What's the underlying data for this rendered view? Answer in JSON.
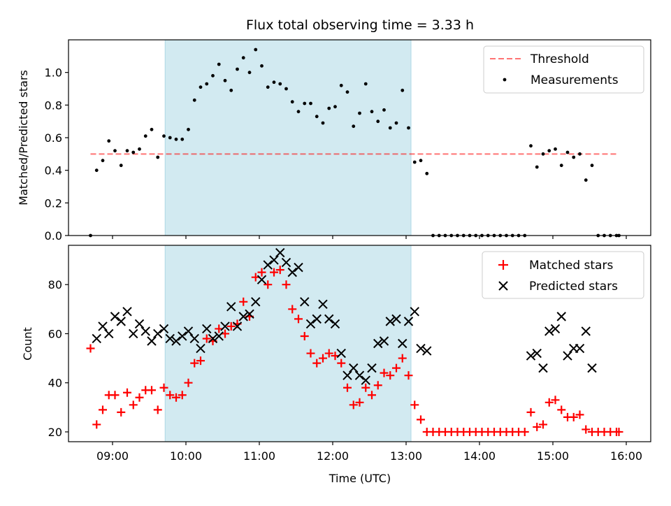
{
  "title": "Flux total observing time = 3.33 h",
  "colors": {
    "highlight": "#add8e6",
    "threshold": "#ff0000",
    "measurements": "#000000",
    "matched": "#ff0000",
    "predicted": "#000000"
  },
  "chart_data": [
    {
      "type": "scatter",
      "ylabel": "Matched/Predicted stars",
      "xlabel": "",
      "xlim": [
        "08:24",
        "16:20"
      ],
      "ylim": [
        0,
        1.2
      ],
      "x_ticks": [
        "09:00",
        "10:00",
        "11:00",
        "12:00",
        "13:00",
        "14:00",
        "15:00",
        "16:00"
      ],
      "y_ticks": [
        "0.0",
        "0.2",
        "0.4",
        "0.6",
        "0.8",
        "1.0"
      ],
      "highlight_span": [
        "09:43",
        "13:04"
      ],
      "legend_position": "top-right",
      "threshold": {
        "name": "Threshold",
        "value": 0.5,
        "range": [
          "08:42",
          "15:54"
        ]
      },
      "series": [
        {
          "name": "Measurements",
          "points": [
            [
              "08:42",
              0.0
            ],
            [
              "08:47",
              0.4
            ],
            [
              "08:52",
              0.46
            ],
            [
              "08:57",
              0.58
            ],
            [
              "09:02",
              0.52
            ],
            [
              "09:07",
              0.43
            ],
            [
              "09:12",
              0.52
            ],
            [
              "09:17",
              0.51
            ],
            [
              "09:22",
              0.53
            ],
            [
              "09:27",
              0.61
            ],
            [
              "09:32",
              0.65
            ],
            [
              "09:37",
              0.48
            ],
            [
              "09:42",
              0.61
            ],
            [
              "09:47",
              0.6
            ],
            [
              "09:52",
              0.59
            ],
            [
              "09:57",
              0.59
            ],
            [
              "10:02",
              0.65
            ],
            [
              "10:07",
              0.83
            ],
            [
              "10:12",
              0.91
            ],
            [
              "10:17",
              0.93
            ],
            [
              "10:22",
              0.98
            ],
            [
              "10:27",
              1.05
            ],
            [
              "10:32",
              0.95
            ],
            [
              "10:37",
              0.89
            ],
            [
              "10:42",
              1.02
            ],
            [
              "10:47",
              1.09
            ],
            [
              "10:52",
              1.0
            ],
            [
              "10:57",
              1.14
            ],
            [
              "11:02",
              1.04
            ],
            [
              "11:07",
              0.91
            ],
            [
              "11:12",
              0.94
            ],
            [
              "11:17",
              0.93
            ],
            [
              "11:22",
              0.9
            ],
            [
              "11:27",
              0.82
            ],
            [
              "11:32",
              0.76
            ],
            [
              "11:37",
              0.81
            ],
            [
              "11:42",
              0.81
            ],
            [
              "11:47",
              0.73
            ],
            [
              "11:52",
              0.69
            ],
            [
              "11:57",
              0.78
            ],
            [
              "12:02",
              0.79
            ],
            [
              "12:07",
              0.92
            ],
            [
              "12:12",
              0.88
            ],
            [
              "12:17",
              0.67
            ],
            [
              "12:22",
              0.75
            ],
            [
              "12:27",
              0.93
            ],
            [
              "12:32",
              0.76
            ],
            [
              "12:37",
              0.7
            ],
            [
              "12:42",
              0.77
            ],
            [
              "12:47",
              0.66
            ],
            [
              "12:52",
              0.69
            ],
            [
              "12:57",
              0.89
            ],
            [
              "13:02",
              0.66
            ],
            [
              "13:07",
              0.45
            ],
            [
              "13:12",
              0.46
            ],
            [
              "13:17",
              0.38
            ],
            [
              "13:22",
              0.0
            ],
            [
              "13:27",
              0.0
            ],
            [
              "13:32",
              0.0
            ],
            [
              "13:37",
              0.0
            ],
            [
              "13:42",
              0.0
            ],
            [
              "13:47",
              0.0
            ],
            [
              "13:52",
              0.0
            ],
            [
              "13:57",
              0.0
            ],
            [
              "14:02",
              0.0
            ],
            [
              "14:07",
              0.0
            ],
            [
              "14:12",
              0.0
            ],
            [
              "14:17",
              0.0
            ],
            [
              "14:22",
              0.0
            ],
            [
              "14:27",
              0.0
            ],
            [
              "14:32",
              0.0
            ],
            [
              "14:37",
              0.0
            ],
            [
              "14:42",
              0.55
            ],
            [
              "14:47",
              0.42
            ],
            [
              "14:52",
              0.5
            ],
            [
              "14:57",
              0.52
            ],
            [
              "15:02",
              0.53
            ],
            [
              "15:07",
              0.43
            ],
            [
              "15:12",
              0.51
            ],
            [
              "15:17",
              0.48
            ],
            [
              "15:22",
              0.5
            ],
            [
              "15:27",
              0.34
            ],
            [
              "15:32",
              0.43
            ],
            [
              "15:37",
              0.0
            ],
            [
              "15:42",
              0.0
            ],
            [
              "15:47",
              0.0
            ],
            [
              "15:52",
              0.0
            ],
            [
              "15:54",
              0.0
            ]
          ]
        }
      ]
    },
    {
      "type": "scatter",
      "ylabel": "Count",
      "xlabel": "Time (UTC)",
      "xlim": [
        "08:24",
        "16:20"
      ],
      "ylim": [
        16,
        96
      ],
      "x_ticks": [
        "09:00",
        "10:00",
        "11:00",
        "12:00",
        "13:00",
        "14:00",
        "15:00",
        "16:00"
      ],
      "y_ticks": [
        "20",
        "40",
        "60",
        "80"
      ],
      "highlight_span": [
        "09:43",
        "13:04"
      ],
      "legend_position": "top-right",
      "series": [
        {
          "name": "Matched stars",
          "marker": "+",
          "points": [
            [
              "08:42",
              54
            ],
            [
              "08:47",
              23
            ],
            [
              "08:52",
              29
            ],
            [
              "08:57",
              35
            ],
            [
              "09:02",
              35
            ],
            [
              "09:07",
              28
            ],
            [
              "09:12",
              36
            ],
            [
              "09:17",
              31
            ],
            [
              "09:22",
              34
            ],
            [
              "09:27",
              37
            ],
            [
              "09:32",
              37
            ],
            [
              "09:37",
              29
            ],
            [
              "09:42",
              38
            ],
            [
              "09:47",
              35
            ],
            [
              "09:52",
              34
            ],
            [
              "09:57",
              35
            ],
            [
              "10:02",
              40
            ],
            [
              "10:07",
              48
            ],
            [
              "10:12",
              49
            ],
            [
              "10:17",
              58
            ],
            [
              "10:22",
              57
            ],
            [
              "10:27",
              62
            ],
            [
              "10:32",
              60
            ],
            [
              "10:37",
              63
            ],
            [
              "10:42",
              64
            ],
            [
              "10:47",
              73
            ],
            [
              "10:52",
              67
            ],
            [
              "10:57",
              83
            ],
            [
              "11:02",
              85
            ],
            [
              "11:07",
              80
            ],
            [
              "11:12",
              85
            ],
            [
              "11:17",
              86
            ],
            [
              "11:22",
              80
            ],
            [
              "11:27",
              70
            ],
            [
              "11:32",
              66
            ],
            [
              "11:37",
              59
            ],
            [
              "11:42",
              52
            ],
            [
              "11:47",
              48
            ],
            [
              "11:52",
              50
            ],
            [
              "11:57",
              52
            ],
            [
              "12:02",
              51
            ],
            [
              "12:07",
              48
            ],
            [
              "12:12",
              38
            ],
            [
              "12:17",
              31
            ],
            [
              "12:22",
              32
            ],
            [
              "12:27",
              38
            ],
            [
              "12:32",
              35
            ],
            [
              "12:37",
              39
            ],
            [
              "12:42",
              44
            ],
            [
              "12:47",
              43
            ],
            [
              "12:52",
              46
            ],
            [
              "12:57",
              50
            ],
            [
              "13:02",
              43
            ],
            [
              "13:07",
              31
            ],
            [
              "13:12",
              25
            ],
            [
              "13:17",
              20
            ],
            [
              "13:22",
              20
            ],
            [
              "13:27",
              20
            ],
            [
              "13:32",
              20
            ],
            [
              "13:37",
              20
            ],
            [
              "13:42",
              20
            ],
            [
              "13:47",
              20
            ],
            [
              "13:52",
              20
            ],
            [
              "13:57",
              20
            ],
            [
              "14:02",
              20
            ],
            [
              "14:07",
              20
            ],
            [
              "14:12",
              20
            ],
            [
              "14:17",
              20
            ],
            [
              "14:22",
              20
            ],
            [
              "14:27",
              20
            ],
            [
              "14:32",
              20
            ],
            [
              "14:37",
              20
            ],
            [
              "14:42",
              28
            ],
            [
              "14:47",
              22
            ],
            [
              "14:52",
              23
            ],
            [
              "14:57",
              32
            ],
            [
              "15:02",
              33
            ],
            [
              "15:07",
              29
            ],
            [
              "15:12",
              26
            ],
            [
              "15:17",
              26
            ],
            [
              "15:22",
              27
            ],
            [
              "15:27",
              21
            ],
            [
              "15:32",
              20
            ],
            [
              "15:37",
              20
            ],
            [
              "15:42",
              20
            ],
            [
              "15:47",
              20
            ],
            [
              "15:52",
              20
            ],
            [
              "15:54",
              20
            ]
          ]
        },
        {
          "name": "Predicted stars",
          "marker": "x",
          "points": [
            [
              "08:47",
              58
            ],
            [
              "08:52",
              63
            ],
            [
              "08:57",
              60
            ],
            [
              "09:02",
              67
            ],
            [
              "09:07",
              65
            ],
            [
              "09:12",
              69
            ],
            [
              "09:17",
              60
            ],
            [
              "09:22",
              64
            ],
            [
              "09:27",
              61
            ],
            [
              "09:32",
              57
            ],
            [
              "09:37",
              60
            ],
            [
              "09:42",
              62
            ],
            [
              "09:47",
              58
            ],
            [
              "09:52",
              57
            ],
            [
              "09:57",
              59
            ],
            [
              "10:02",
              61
            ],
            [
              "10:07",
              58
            ],
            [
              "10:12",
              54
            ],
            [
              "10:17",
              62
            ],
            [
              "10:22",
              58
            ],
            [
              "10:27",
              59
            ],
            [
              "10:32",
              63
            ],
            [
              "10:37",
              71
            ],
            [
              "10:42",
              63
            ],
            [
              "10:47",
              67
            ],
            [
              "10:52",
              68
            ],
            [
              "10:57",
              73
            ],
            [
              "11:02",
              82
            ],
            [
              "11:07",
              88
            ],
            [
              "11:12",
              90
            ],
            [
              "11:17",
              93
            ],
            [
              "11:22",
              89
            ],
            [
              "11:27",
              85
            ],
            [
              "11:32",
              87
            ],
            [
              "11:37",
              73
            ],
            [
              "11:42",
              64
            ],
            [
              "11:47",
              66
            ],
            [
              "11:52",
              72
            ],
            [
              "11:57",
              66
            ],
            [
              "12:02",
              64
            ],
            [
              "12:07",
              52
            ],
            [
              "12:12",
              43
            ],
            [
              "12:17",
              46
            ],
            [
              "12:22",
              43
            ],
            [
              "12:27",
              41
            ],
            [
              "12:32",
              46
            ],
            [
              "12:37",
              56
            ],
            [
              "12:42",
              57
            ],
            [
              "12:47",
              65
            ],
            [
              "12:52",
              66
            ],
            [
              "12:57",
              56
            ],
            [
              "13:02",
              65
            ],
            [
              "13:07",
              69
            ],
            [
              "13:12",
              54
            ],
            [
              "13:17",
              53
            ],
            [
              "14:42",
              51
            ],
            [
              "14:47",
              52
            ],
            [
              "14:52",
              46
            ],
            [
              "14:57",
              61
            ],
            [
              "15:02",
              62
            ],
            [
              "15:07",
              67
            ],
            [
              "15:12",
              51
            ],
            [
              "15:17",
              54
            ],
            [
              "15:22",
              54
            ],
            [
              "15:27",
              61
            ],
            [
              "15:32",
              46
            ]
          ]
        }
      ]
    }
  ]
}
